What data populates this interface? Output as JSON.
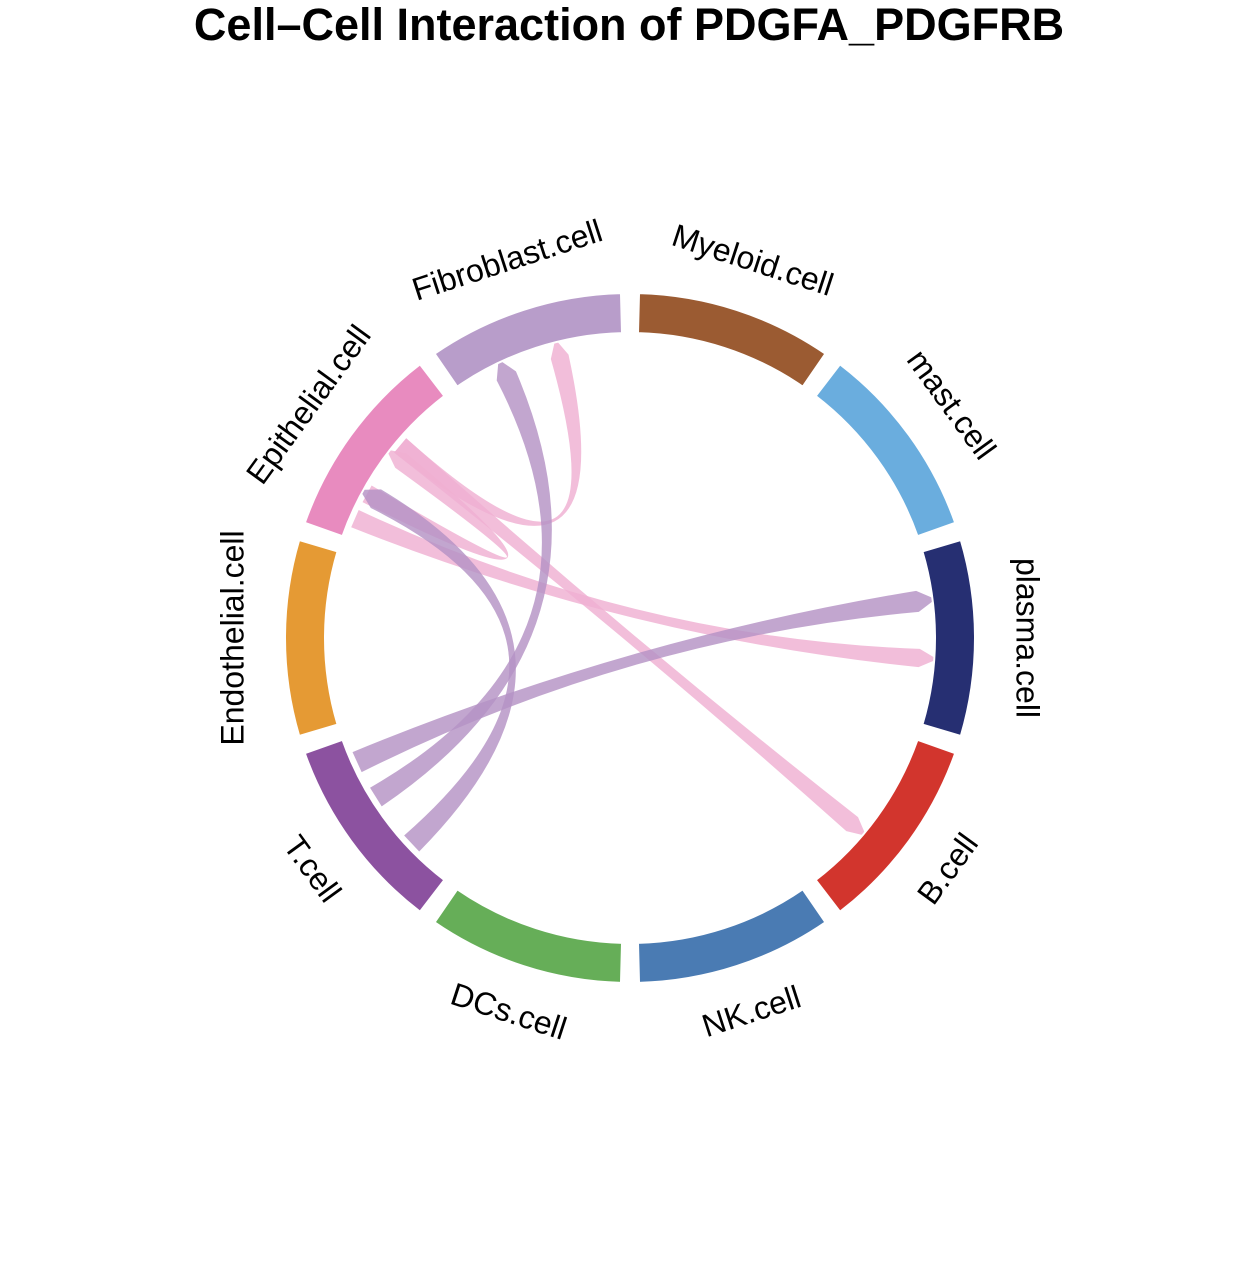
{
  "chart_data": {
    "type": "chord",
    "title": "Cell–Cell Interaction of PDGFA_PDGFRB",
    "sectors": [
      {
        "name": "Myeloid.cell",
        "color": "#9B5B32"
      },
      {
        "name": "mast.cell",
        "color": "#6AADDE"
      },
      {
        "name": "plasma.cell",
        "color": "#262F72"
      },
      {
        "name": "B.cell",
        "color": "#D2352D"
      },
      {
        "name": "NK.cell",
        "color": "#4A7BB3"
      },
      {
        "name": "DCs.cell",
        "color": "#66AE58"
      },
      {
        "name": "T.cell",
        "color": "#8C52A0"
      },
      {
        "name": "Endothelial.cell",
        "color": "#E59A34"
      },
      {
        "name": "Epithelial.cell",
        "color": "#E88BBF"
      },
      {
        "name": "Fibroblast.cell",
        "color": "#B89DCA"
      }
    ],
    "links": [
      {
        "source": "Epithelial.cell",
        "target": "Fibroblast.cell",
        "color": "#EFB0D2"
      },
      {
        "source": "Epithelial.cell",
        "target": "Epithelial.cell",
        "color": "#EFB0D2"
      },
      {
        "source": "Epithelial.cell",
        "target": "plasma.cell",
        "color": "#EFB0D2"
      },
      {
        "source": "Epithelial.cell",
        "target": "B.cell",
        "color": "#EFB0D2"
      },
      {
        "source": "T.cell",
        "target": "Fibroblast.cell",
        "color": "#B592C5"
      },
      {
        "source": "T.cell",
        "target": "Epithelial.cell",
        "color": "#B592C5"
      },
      {
        "source": "T.cell",
        "target": "plasma.cell",
        "color": "#B592C5"
      }
    ]
  }
}
